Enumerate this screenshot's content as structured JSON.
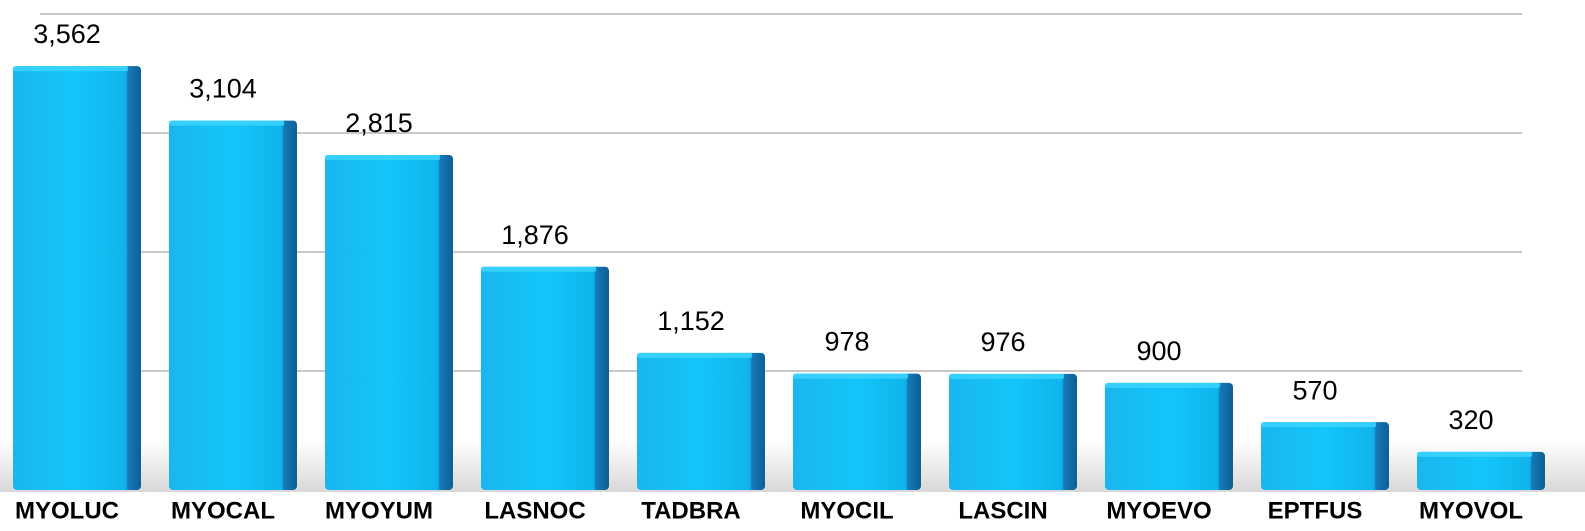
{
  "chart_data": {
    "type": "bar",
    "categories": [
      "MYOLUC",
      "MYOCAL",
      "MYOYUM",
      "LASNOC",
      "TADBRA",
      "MYOCIL",
      "LASCIN",
      "MYOEVO",
      "EPTFUS",
      "MYOVOL"
    ],
    "values": [
      3562,
      3104,
      2815,
      1876,
      1152,
      978,
      976,
      900,
      570,
      320
    ],
    "value_labels": [
      "3,562",
      "3,104",
      "2,815",
      "1,876",
      "1,152",
      "978",
      "976",
      "900",
      "570",
      "320"
    ],
    "color": "#12bff5",
    "ylim": [
      0,
      4000
    ],
    "yticks": [
      0,
      1000,
      2000,
      3000,
      4000
    ],
    "grid": true
  }
}
